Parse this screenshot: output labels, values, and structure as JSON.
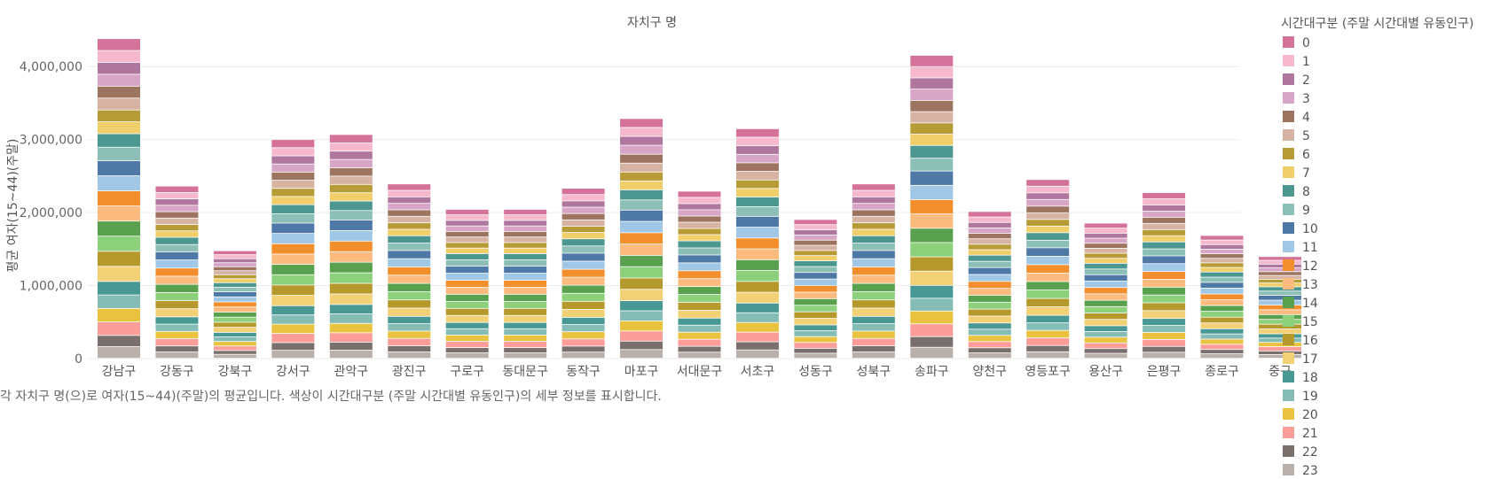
{
  "chart_data": {
    "type": "bar",
    "stacked": true,
    "title": "자치구 명",
    "xlabel": "",
    "ylabel": "평균 여자(15~44)(주말)",
    "ylim": [
      0,
      4500000
    ],
    "yticks": [
      0,
      1000000,
      2000000,
      3000000,
      4000000
    ],
    "ytick_labels": [
      "0",
      "1,000,000",
      "2,000,000",
      "3,000,000",
      "4,000,000"
    ],
    "grid": true,
    "legend_position": "right",
    "legend_title": "시간대구분 (주말 시간대별 유동인구)",
    "caption": "각 자치구 명(으)로 여자(15~44)(주말)의 평균입니다. 색상이 시간대구분 (주말 시간대별 유동인구)의 세부 정보를 표시합니다.",
    "categories": [
      "강남구",
      "강동구",
      "강북구",
      "강서구",
      "관악구",
      "광진구",
      "구로구",
      "동대문구",
      "동작구",
      "마포구",
      "서대문구",
      "서초구",
      "성동구",
      "성북구",
      "송파구",
      "양천구",
      "영등포구",
      "용산구",
      "은평구",
      "종로구",
      "중구"
    ],
    "totals": [
      4400000,
      2370000,
      1480000,
      3010000,
      3080000,
      2400000,
      2050000,
      2050000,
      2340000,
      3300000,
      2300000,
      3160000,
      1910000,
      2400000,
      4170000,
      2020000,
      2460000,
      1860000,
      2280000,
      1690000,
      1400000
    ],
    "series_names": [
      "0",
      "1",
      "2",
      "3",
      "4",
      "5",
      "6",
      "7",
      "8",
      "9",
      "10",
      "11",
      "12",
      "13",
      "14",
      "15",
      "16",
      "17",
      "18",
      "19",
      "20",
      "21",
      "22",
      "23"
    ],
    "series_colors": [
      "#d4729a",
      "#f5b8cd",
      "#b0779e",
      "#d7a6c7",
      "#9c7460",
      "#d7b3a3",
      "#b69b37",
      "#f0ce69",
      "#4c978f",
      "#8cc0b6",
      "#4e78a6",
      "#a0c8e6",
      "#f28e2c",
      "#fcbb7e",
      "#59a14f",
      "#8dd07c",
      "#b6992d",
      "#f2d075",
      "#489893",
      "#86bcb6",
      "#e9c33f",
      "#fc9d9a",
      "#79706e",
      "#bab0ab"
    ],
    "shares": [
      0.037,
      0.037,
      0.037,
      0.037,
      0.037,
      0.037,
      0.037,
      0.037,
      0.042,
      0.042,
      0.047,
      0.047,
      0.047,
      0.047,
      0.047,
      0.047,
      0.047,
      0.047,
      0.042,
      0.042,
      0.042,
      0.042,
      0.035,
      0.036
    ]
  }
}
